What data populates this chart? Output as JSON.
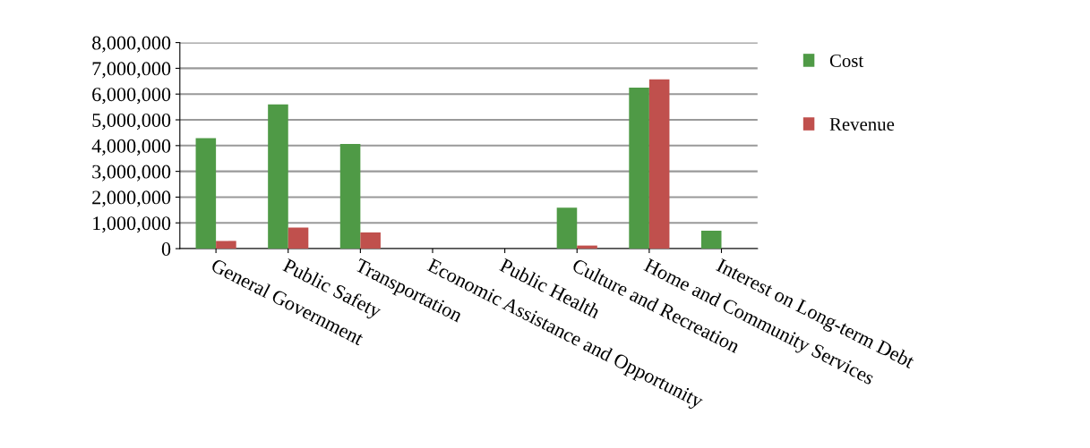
{
  "chart_data": {
    "type": "bar",
    "categories": [
      "General Government",
      "Public Safety",
      "Transportation",
      "Economic Assistance and Opportunity",
      "Public Health",
      "Culture and Recreation",
      "Home and Community Services",
      "Interest on Long-term Debt"
    ],
    "series": [
      {
        "name": "Cost",
        "color": "#4f9a46",
        "values": [
          4290000,
          5600000,
          4060000,
          null,
          null,
          1590000,
          6250000,
          700000
        ]
      },
      {
        "name": "Revenue",
        "color": "#c0504d",
        "values": [
          300000,
          820000,
          630000,
          null,
          null,
          120000,
          6570000,
          null
        ]
      }
    ],
    "ylim": [
      0,
      8000000
    ],
    "yticks": [
      {
        "value": 0,
        "label": "0"
      },
      {
        "value": 1000000,
        "label": "1,000,000"
      },
      {
        "value": 2000000,
        "label": "2,000,000"
      },
      {
        "value": 3000000,
        "label": "3,000,000"
      },
      {
        "value": 4000000,
        "label": "4,000,000"
      },
      {
        "value": 5000000,
        "label": "5,000,000"
      },
      {
        "value": 6000000,
        "label": "6,000,000"
      },
      {
        "value": 7000000,
        "label": "7,000,000"
      },
      {
        "value": 8000000,
        "label": "8,000,000"
      }
    ],
    "grid": "y",
    "legend": "right"
  }
}
